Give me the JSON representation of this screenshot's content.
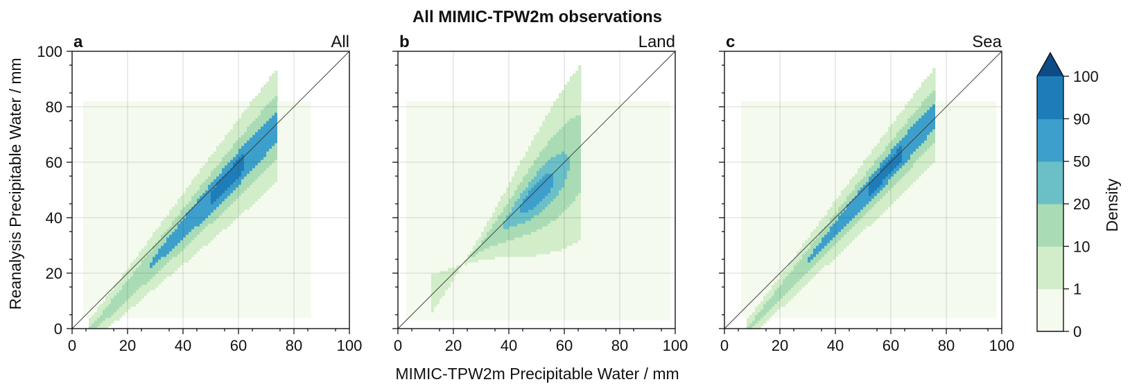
{
  "suptitle": "All MIMIC-TPW2m observations",
  "xlabel": "MIMIC-TPW2m Precipitable Water / mm",
  "ylabel": "Reanalysis Precipitable Water / mm",
  "colorbar": {
    "label": "Density",
    "levels": [
      0,
      1,
      10,
      20,
      50,
      90,
      100
    ],
    "tick_labels": [
      "0",
      "1",
      "10",
      "20",
      "50",
      "90",
      "100"
    ],
    "colors": [
      "#f4fbee",
      "#d2edc9",
      "#a9dcb5",
      "#6bc0c8",
      "#3d9fcb",
      "#1e7db8"
    ],
    "extend_color": "#0d4a86",
    "extend": "max"
  },
  "chart_data": [
    {
      "type": "heatmap",
      "letter": "a",
      "title": "All",
      "xlim": [
        0,
        100
      ],
      "ylim": [
        0,
        100
      ],
      "xticks": [
        "0",
        "20",
        "40",
        "60",
        "80",
        "100"
      ],
      "yticks": [
        "0",
        "20",
        "40",
        "60",
        "80",
        "100"
      ],
      "grid": true,
      "identity_line": true,
      "density_model": {
        "x_range": [
          4,
          86
        ],
        "y_range": [
          4,
          82
        ],
        "slope": 1.1,
        "intercept": -8,
        "center_x": 56,
        "spread": 6,
        "core_range": [
          28,
          66
        ],
        "tail_length": 22
      },
      "density_levels": {
        "low": 1,
        "mid": 10,
        "high": 50,
        "peak": 90
      }
    },
    {
      "type": "heatmap",
      "letter": "b",
      "title": "Land",
      "xlim": [
        0,
        100
      ],
      "ylim": [
        0,
        100
      ],
      "xticks": [
        "0",
        "20",
        "40",
        "60",
        "80",
        "100"
      ],
      "yticks": [],
      "grid": true,
      "identity_line": true,
      "density_model": {
        "x_range": [
          3,
          98
        ],
        "y_range": [
          3,
          82
        ],
        "slope": 0.95,
        "intercept": 1,
        "center_x": 50,
        "spread": 9,
        "core_range": [
          42,
          58
        ],
        "tail_length": 30
      },
      "density_levels": {
        "low": 1,
        "mid": 10,
        "high": 20,
        "peak": 50
      }
    },
    {
      "type": "heatmap",
      "letter": "c",
      "title": "Sea",
      "xlim": [
        0,
        100
      ],
      "ylim": [
        0,
        100
      ],
      "xticks": [
        "0",
        "20",
        "40",
        "60",
        "80",
        "100"
      ],
      "yticks": [],
      "grid": true,
      "identity_line": true,
      "density_model": {
        "x_range": [
          6,
          98
        ],
        "y_range": [
          4,
          82
        ],
        "slope": 1.15,
        "intercept": -10,
        "center_x": 58,
        "spread": 5,
        "core_range": [
          30,
          68
        ],
        "tail_length": 22
      },
      "density_levels": {
        "low": 1,
        "mid": 10,
        "high": 50,
        "peak": 90
      }
    }
  ]
}
